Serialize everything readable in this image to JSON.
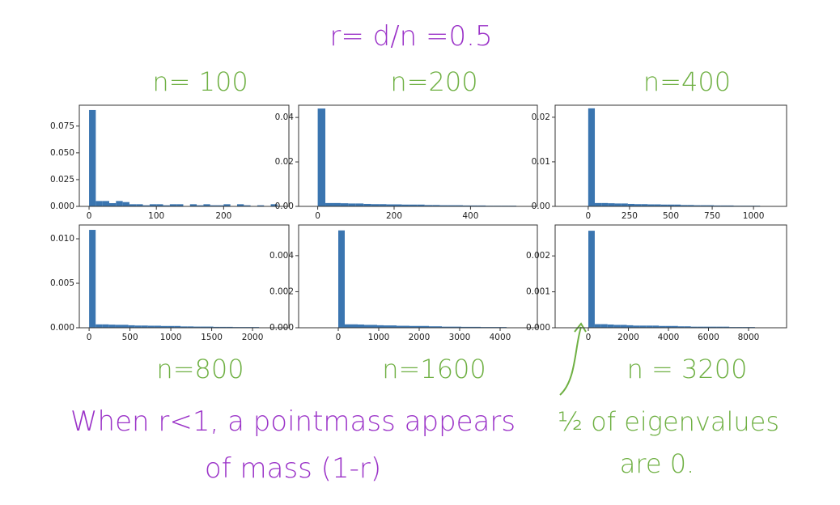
{
  "annotations": [
    "r= d/n =0.5",
    "When r<1, a pointmass appears",
    "of mass (1-r)",
    "½ of eigenvalues",
    "are 0."
  ],
  "chart_data": [
    {
      "type": "histogram",
      "title": "n= 100",
      "color": "#3a75b0",
      "bins": [
        0,
        10,
        20,
        30,
        40,
        50,
        60,
        70,
        80,
        90,
        100,
        110,
        120,
        130,
        140,
        150,
        160,
        170,
        180,
        190,
        200,
        210,
        220,
        230,
        240,
        250,
        260,
        270,
        280
      ],
      "values": [
        0.09,
        0.005,
        0.005,
        0.003,
        0.005,
        0.004,
        0.002,
        0.002,
        0.001,
        0.002,
        0.002,
        0.001,
        0.002,
        0.002,
        0,
        0.002,
        0.001,
        0.002,
        0.001,
        0.001,
        0.002,
        0,
        0.002,
        0.001,
        0,
        0.001,
        0,
        0.002
      ],
      "xlim": [
        -14.5,
        297
      ],
      "xticks": [
        0,
        100,
        200
      ],
      "ylim": [
        0,
        0.0945
      ],
      "yticks": [
        {
          "value": 0,
          "label": "0.000"
        },
        {
          "value": 0.025,
          "label": "0.025"
        },
        {
          "value": 0.05,
          "label": "0.050"
        },
        {
          "value": 0.075,
          "label": "0.075"
        }
      ]
    },
    {
      "type": "histogram",
      "title": "n=200",
      "color": "#3a75b0",
      "bins": [
        0,
        20,
        40,
        60,
        80,
        100,
        120,
        140,
        160,
        180,
        200,
        220,
        240,
        260,
        280,
        300,
        320,
        340,
        360,
        380,
        400,
        420,
        440,
        460,
        480,
        500,
        520,
        540,
        560
      ],
      "values": [
        0.044,
        0.0015,
        0.0015,
        0.0014,
        0.0013,
        0.0013,
        0.0011,
        0.001,
        0.001,
        0.0009,
        0.0009,
        0.0008,
        0.0008,
        0.0008,
        0.0006,
        0.0006,
        0.0005,
        0.0005,
        0.0005,
        0.0004,
        0.0004,
        0.0004,
        0.0003,
        0.0003,
        0.0003,
        0.0003,
        0.0001,
        0.0001
      ],
      "xlim": [
        -50,
        575
      ],
      "xticks": [
        0,
        200,
        400
      ],
      "ylim": [
        0,
        0.0455
      ],
      "yticks": [
        {
          "value": 0,
          "label": "0.00"
        },
        0.02,
        0.04
      ]
    },
    {
      "type": "histogram",
      "title": "n=400",
      "color": "#3a75b0",
      "bins": [
        0,
        40,
        80,
        120,
        160,
        200,
        240,
        280,
        320,
        360,
        400,
        440,
        480,
        520,
        560,
        600,
        640,
        680,
        720,
        760,
        800,
        840,
        880,
        920,
        960,
        1000,
        1040,
        1080,
        1120
      ],
      "values": [
        0.022,
        0.00075,
        0.00075,
        0.0007,
        0.00065,
        0.00065,
        0.00055,
        0.0005,
        0.0005,
        0.00045,
        0.00045,
        0.0004,
        0.0004,
        0.0004,
        0.0003,
        0.0003,
        0.00025,
        0.00025,
        0.00025,
        0.0002,
        0.0002,
        0.0002,
        0.00015,
        0.00015,
        0.00015,
        0.00015,
        5e-05,
        5e-05
      ],
      "xlim": [
        -200,
        1200
      ],
      "xticks": [
        0,
        250,
        500,
        750,
        1000
      ],
      "ylim": [
        0,
        0.0227
      ],
      "yticks": [
        {
          "value": 0,
          "label": "0.00"
        },
        0.01,
        0.02
      ]
    },
    {
      "type": "histogram",
      "title": "n=800",
      "color": "#3a75b0",
      "bins": [
        0,
        80,
        160,
        240,
        320,
        400,
        480,
        560,
        640,
        720,
        800,
        880,
        960,
        1040,
        1120,
        1200,
        1280,
        1360,
        1440,
        1520,
        1600,
        1680,
        1760,
        1840,
        1920,
        2000,
        2080,
        2160,
        2240
      ],
      "values": [
        0.011,
        0.00038,
        0.00038,
        0.00035,
        0.00033,
        0.00033,
        0.00028,
        0.00025,
        0.00025,
        0.00023,
        0.00023,
        0.0002,
        0.0002,
        0.0002,
        0.00015,
        0.00015,
        0.00013,
        0.00013,
        0.00013,
        0.0001,
        0.0001,
        0.0001,
        8e-05,
        8e-05,
        8e-05,
        8e-05,
        3e-05,
        3e-05
      ],
      "xlim": [
        -120,
        2445
      ],
      "xticks": [
        0,
        500,
        1000,
        1500,
        2000
      ],
      "ylim": [
        0,
        0.01155
      ],
      "yticks": [
        {
          "value": 0,
          "label": "0.000"
        },
        0.005,
        {
          "value": 0.01,
          "label": "0.010"
        }
      ]
    },
    {
      "type": "histogram",
      "title": "n=1600",
      "color": "#3a75b0",
      "bins": [
        0,
        160,
        320,
        480,
        640,
        800,
        960,
        1120,
        1280,
        1440,
        1600,
        1760,
        1920,
        2080,
        2240,
        2400,
        2560,
        2720,
        2880,
        3040,
        3200,
        3360,
        3520,
        3680,
        3840,
        4000,
        4160,
        4320,
        4480
      ],
      "values": [
        0.0054,
        0.00019,
        0.00019,
        0.00018,
        0.00016,
        0.00016,
        0.00014,
        0.00013,
        0.00013,
        0.00011,
        0.00011,
        0.0001,
        0.0001,
        0.0001,
        8e-05,
        8e-05,
        6e-05,
        6e-05,
        6e-05,
        5e-05,
        5e-05,
        5e-05,
        4e-05,
        4e-05,
        4e-05,
        4e-05,
        2e-05,
        2e-05
      ],
      "xlim": [
        -980,
        4920
      ],
      "xticks": [
        0,
        1000,
        2000,
        3000,
        4000
      ],
      "ylim": [
        0,
        0.0057
      ],
      "yticks": [
        {
          "value": 0,
          "label": "0.000"
        },
        0.002,
        0.004
      ]
    },
    {
      "type": "histogram",
      "title": "n = 3200",
      "color": "#3a75b0",
      "bins": [
        0,
        320,
        640,
        960,
        1280,
        1600,
        1920,
        2240,
        2560,
        2880,
        3200,
        3520,
        3840,
        4160,
        4480,
        4800,
        5120,
        5440,
        5760,
        6080,
        6400,
        6720,
        7040,
        7360,
        7680,
        8000,
        8320,
        8640,
        8960
      ],
      "values": [
        0.0027,
        0.0001,
        0.0001,
        9e-05,
        8e-05,
        8e-05,
        7e-05,
        6e-05,
        6e-05,
        6e-05,
        6e-05,
        5e-05,
        5e-05,
        5e-05,
        4e-05,
        4e-05,
        3e-05,
        3e-05,
        3e-05,
        3e-05,
        3e-05,
        3e-05,
        2e-05,
        2e-05,
        2e-05,
        2e-05,
        1e-05,
        1e-05
      ],
      "xlim": [
        -1657,
        9899
      ],
      "xticks": [
        0,
        2000,
        4000,
        6000,
        8000
      ],
      "ylim": [
        0,
        0.00286
      ],
      "yticks": [
        {
          "value": 0,
          "label": "0.000"
        },
        0.001,
        0.002
      ]
    }
  ]
}
